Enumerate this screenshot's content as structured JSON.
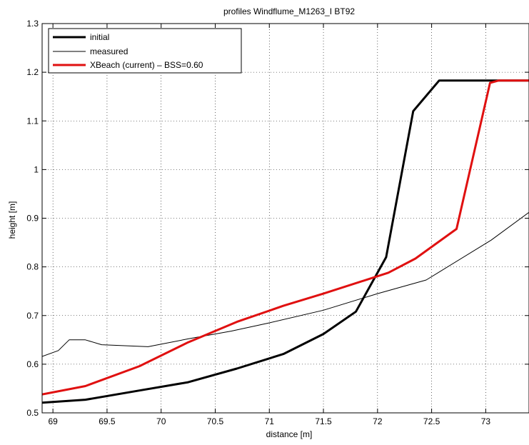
{
  "chart_data": {
    "type": "line",
    "title": "profiles Windflume_M1263_I BT92",
    "xlabel": "distance [m]",
    "ylabel": "height [m]",
    "xlim": [
      68.9,
      73.4
    ],
    "ylim": [
      0.5,
      1.3
    ],
    "xticks": [
      69,
      69.5,
      70,
      70.5,
      71,
      71.5,
      72,
      72.5,
      73
    ],
    "xtick_labels": [
      "69",
      "69.5",
      "70",
      "70.5",
      "71",
      "71.5",
      "72",
      "72.5",
      "73"
    ],
    "yticks": [
      0.5,
      0.6,
      0.7,
      0.8,
      0.9,
      1.0,
      1.1,
      1.2,
      1.3
    ],
    "ytick_labels": [
      "0.5",
      "0.6",
      "0.7",
      "0.8",
      "0.9",
      "1",
      "1.1",
      "1.2",
      "1.3"
    ],
    "grid": true,
    "legend_position": "top-left",
    "series": [
      {
        "name": "initial",
        "color": "#000000",
        "width": 3,
        "x": [
          68.9,
          69.3,
          69.8,
          70.25,
          70.7,
          71.13,
          71.5,
          71.8,
          72.08,
          72.33,
          72.57,
          73.4
        ],
        "y": [
          0.521,
          0.527,
          0.546,
          0.563,
          0.591,
          0.621,
          0.662,
          0.708,
          0.82,
          1.12,
          1.183,
          1.183
        ]
      },
      {
        "name": "measured",
        "color": "#000000",
        "width": 1,
        "x": [
          68.9,
          69.05,
          69.15,
          69.3,
          69.45,
          69.88,
          70.25,
          70.65,
          71.0,
          71.5,
          72.0,
          72.45,
          73.05,
          73.4
        ],
        "y": [
          0.616,
          0.628,
          0.65,
          0.65,
          0.64,
          0.636,
          0.652,
          0.668,
          0.685,
          0.711,
          0.745,
          0.773,
          0.855,
          0.912
        ]
      },
      {
        "name": "XBeach (current) – BSS=0.60",
        "color": "#e01010",
        "width": 3,
        "x": [
          68.9,
          69.3,
          69.8,
          70.25,
          70.7,
          71.13,
          71.5,
          72.1,
          72.35,
          72.73,
          73.04,
          73.12,
          73.4
        ],
        "y": [
          0.538,
          0.555,
          0.596,
          0.645,
          0.687,
          0.72,
          0.745,
          0.788,
          0.817,
          0.878,
          1.178,
          1.183,
          1.183
        ]
      }
    ]
  }
}
